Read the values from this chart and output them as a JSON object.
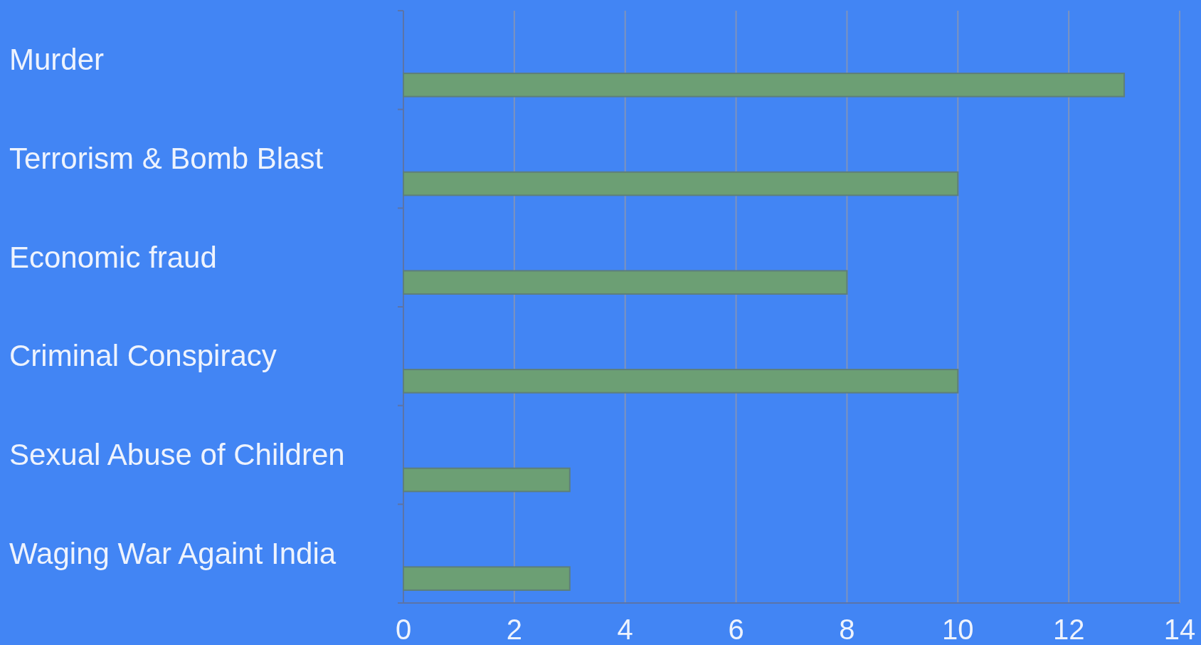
{
  "chart_data": {
    "type": "bar",
    "orientation": "horizontal",
    "categories": [
      "Murder",
      "Terrorism & Bomb Blast",
      "Economic fraud",
      "Criminal Conspiracy",
      "Sexual Abuse of Children",
      "Waging War Againt India"
    ],
    "values": [
      13,
      10,
      8,
      10,
      3,
      3
    ],
    "color": "#6c9f74",
    "xlim": [
      0,
      14
    ],
    "xticks": [
      0,
      2,
      4,
      6,
      8,
      10,
      12,
      14
    ],
    "grid": "x"
  }
}
